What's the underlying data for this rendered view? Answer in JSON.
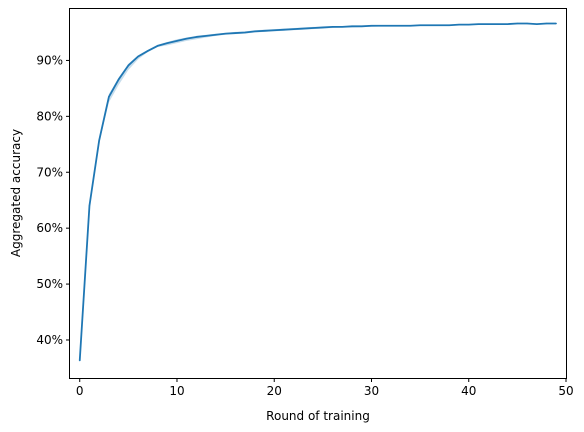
{
  "chart_data": {
    "type": "line",
    "xlabel": "Round of training",
    "ylabel": "Aggregated accuracy",
    "xlim": [
      -1,
      50
    ],
    "ylim": [
      33.2,
      99.2
    ],
    "x_ticks": [
      0,
      10,
      20,
      30,
      40,
      50
    ],
    "x_tick_labels": [
      "0",
      "10",
      "20",
      "30",
      "40",
      "50"
    ],
    "y_ticks": [
      40,
      50,
      60,
      70,
      80,
      90
    ],
    "y_tick_labels": [
      "40%",
      "50%",
      "60%",
      "70%",
      "80%",
      "90%"
    ],
    "grid": false,
    "legend": false,
    "colors": {
      "line": "#1f77b4",
      "band": "#1f77b4",
      "axes": "#000000"
    },
    "series": [
      {
        "x": [
          0,
          1,
          2,
          3,
          4,
          5,
          6,
          7,
          8,
          9,
          10,
          11,
          12,
          13,
          14,
          15,
          16,
          17,
          18,
          19,
          20,
          21,
          22,
          23,
          24,
          25,
          26,
          27,
          28,
          29,
          30,
          31,
          32,
          33,
          34,
          35,
          36,
          37,
          38,
          39,
          40,
          41,
          42,
          43,
          44,
          45,
          46,
          47,
          48,
          49
        ],
        "values": [
          36.3,
          64.0,
          75.7,
          83.5,
          86.6,
          89.1,
          90.7,
          91.7,
          92.6,
          93.1,
          93.5,
          93.9,
          94.2,
          94.4,
          94.6,
          94.8,
          94.9,
          95.0,
          95.2,
          95.3,
          95.4,
          95.5,
          95.6,
          95.7,
          95.8,
          95.9,
          96.0,
          96.0,
          96.1,
          96.1,
          96.2,
          96.2,
          96.2,
          96.2,
          96.2,
          96.3,
          96.3,
          96.3,
          96.3,
          96.4,
          96.4,
          96.5,
          96.5,
          96.5,
          96.5,
          96.6,
          96.6,
          96.5,
          96.6,
          96.6
        ],
        "lower": [
          36.3,
          64.0,
          75.2,
          82.5,
          85.6,
          88.3,
          90.2,
          91.5,
          92.4,
          92.7,
          93.1,
          93.5,
          93.8,
          94.1,
          94.4,
          94.6,
          94.7,
          94.8,
          95.0,
          95.1,
          95.2,
          95.3,
          95.4,
          95.5,
          95.6,
          95.7,
          95.8,
          95.9,
          95.9,
          96.0,
          96.0,
          96.1,
          96.1,
          96.1,
          96.1,
          96.2,
          96.2,
          96.2,
          96.2,
          96.3,
          96.3,
          96.4,
          96.4,
          96.4,
          96.4,
          96.5,
          96.5,
          96.4,
          96.5,
          96.5
        ],
        "upper": [
          36.3,
          64.0,
          76.2,
          84.0,
          86.9,
          89.4,
          90.9,
          91.9,
          92.8,
          93.3,
          93.8,
          94.1,
          94.4,
          94.6,
          94.8,
          94.9,
          95.1,
          95.2,
          95.4,
          95.5,
          95.6,
          95.7,
          95.8,
          95.9,
          96.0,
          96.0,
          96.1,
          96.1,
          96.2,
          96.2,
          96.3,
          96.3,
          96.3,
          96.3,
          96.3,
          96.4,
          96.4,
          96.4,
          96.4,
          96.5,
          96.5,
          96.6,
          96.6,
          96.6,
          96.6,
          96.7,
          96.7,
          96.6,
          96.7,
          96.7
        ]
      }
    ]
  }
}
